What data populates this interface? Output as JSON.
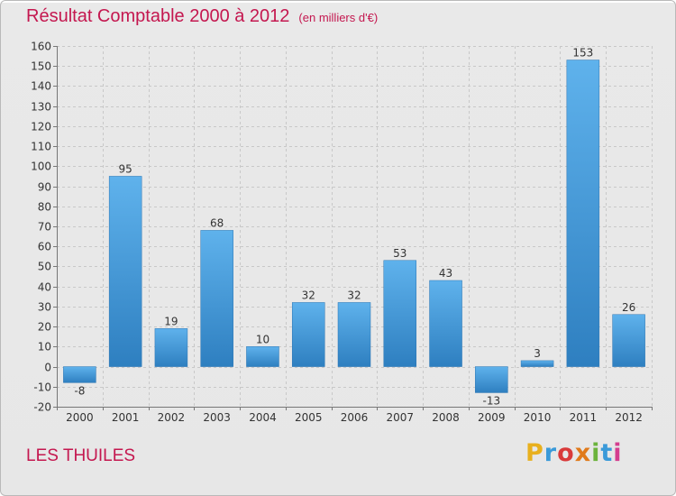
{
  "header": {
    "title": "Résultat Comptable 2000 à 2012",
    "subtitle": "(en milliers d'€)"
  },
  "commune": "LES THUILES",
  "logo": {
    "letters": [
      "P",
      "r",
      "o",
      "x",
      "i",
      "t",
      "i"
    ],
    "colors": [
      "#e8b01e",
      "#3a9ad9",
      "#d93a3a",
      "#e07a1b",
      "#6bb33c",
      "#3a9ad9",
      "#d43e8f"
    ]
  },
  "chart_data": {
    "type": "bar",
    "title": "Résultat Comptable 2000 à 2012",
    "subtitle": "(en milliers d'€)",
    "categories": [
      "2000",
      "2001",
      "2002",
      "2003",
      "2004",
      "2005",
      "2006",
      "2007",
      "2008",
      "2009",
      "2010",
      "2011",
      "2012"
    ],
    "values": [
      -8,
      95,
      19,
      68,
      10,
      32,
      32,
      53,
      43,
      -13,
      3,
      153,
      26
    ],
    "data_labels": [
      "-8",
      "95",
      "19",
      "68",
      "10",
      "32",
      "32",
      "53",
      "43",
      "-13",
      "3",
      "153",
      "26"
    ],
    "ylim": [
      -20,
      160
    ],
    "yticks": [
      -20,
      -10,
      0,
      10,
      20,
      30,
      40,
      50,
      60,
      70,
      80,
      90,
      100,
      110,
      120,
      130,
      140,
      150,
      160
    ],
    "grid": true,
    "bar_color": "#3d8fd4"
  }
}
